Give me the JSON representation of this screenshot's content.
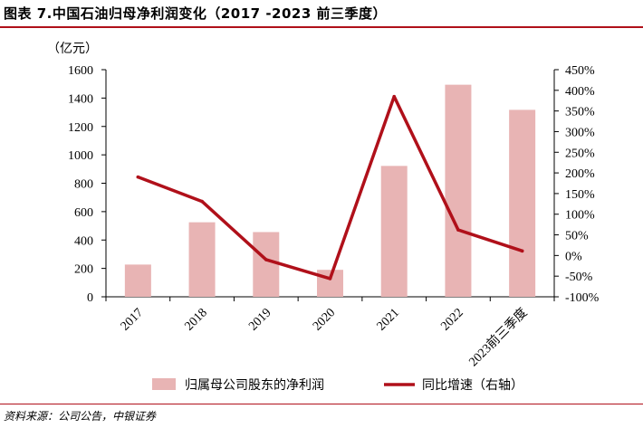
{
  "header": {
    "title": "图表 7.中国石油归母净利润变化（2017 -2023 前三季度）"
  },
  "footer": {
    "source": "资料来源：公司公告，中银证券"
  },
  "colors": {
    "bar": "#e8b4b4",
    "line": "#b0101a",
    "accent_rule": "#b0101a"
  },
  "chart_data": {
    "type": "bar",
    "title": "",
    "left_unit_label": "（亿元）",
    "categories": [
      "2017",
      "2018",
      "2019",
      "2020",
      "2021",
      "2022",
      "2023前三季度"
    ],
    "series": [
      {
        "name": "归属母公司股东的净利润",
        "type": "bar",
        "axis": "left",
        "values": [
          227,
          525,
          456,
          190,
          922,
          1494,
          1317
        ]
      },
      {
        "name": "同比增速（右轴）",
        "type": "line",
        "axis": "right",
        "values": [
          190,
          131,
          -10,
          -56,
          385,
          62,
          11
        ]
      }
    ],
    "left_axis": {
      "min": 0,
      "max": 1600,
      "step": 200,
      "tick_labels": [
        "0",
        "200",
        "400",
        "600",
        "800",
        "1000",
        "1200",
        "1400",
        "1600"
      ]
    },
    "right_axis": {
      "min": -100,
      "max": 450,
      "step": 50,
      "tick_labels": [
        "-100%",
        "-50%",
        "0%",
        "50%",
        "100%",
        "150%",
        "200%",
        "250%",
        "300%",
        "350%",
        "400%",
        "450%"
      ]
    },
    "grid": false,
    "legend_position": "bottom"
  }
}
